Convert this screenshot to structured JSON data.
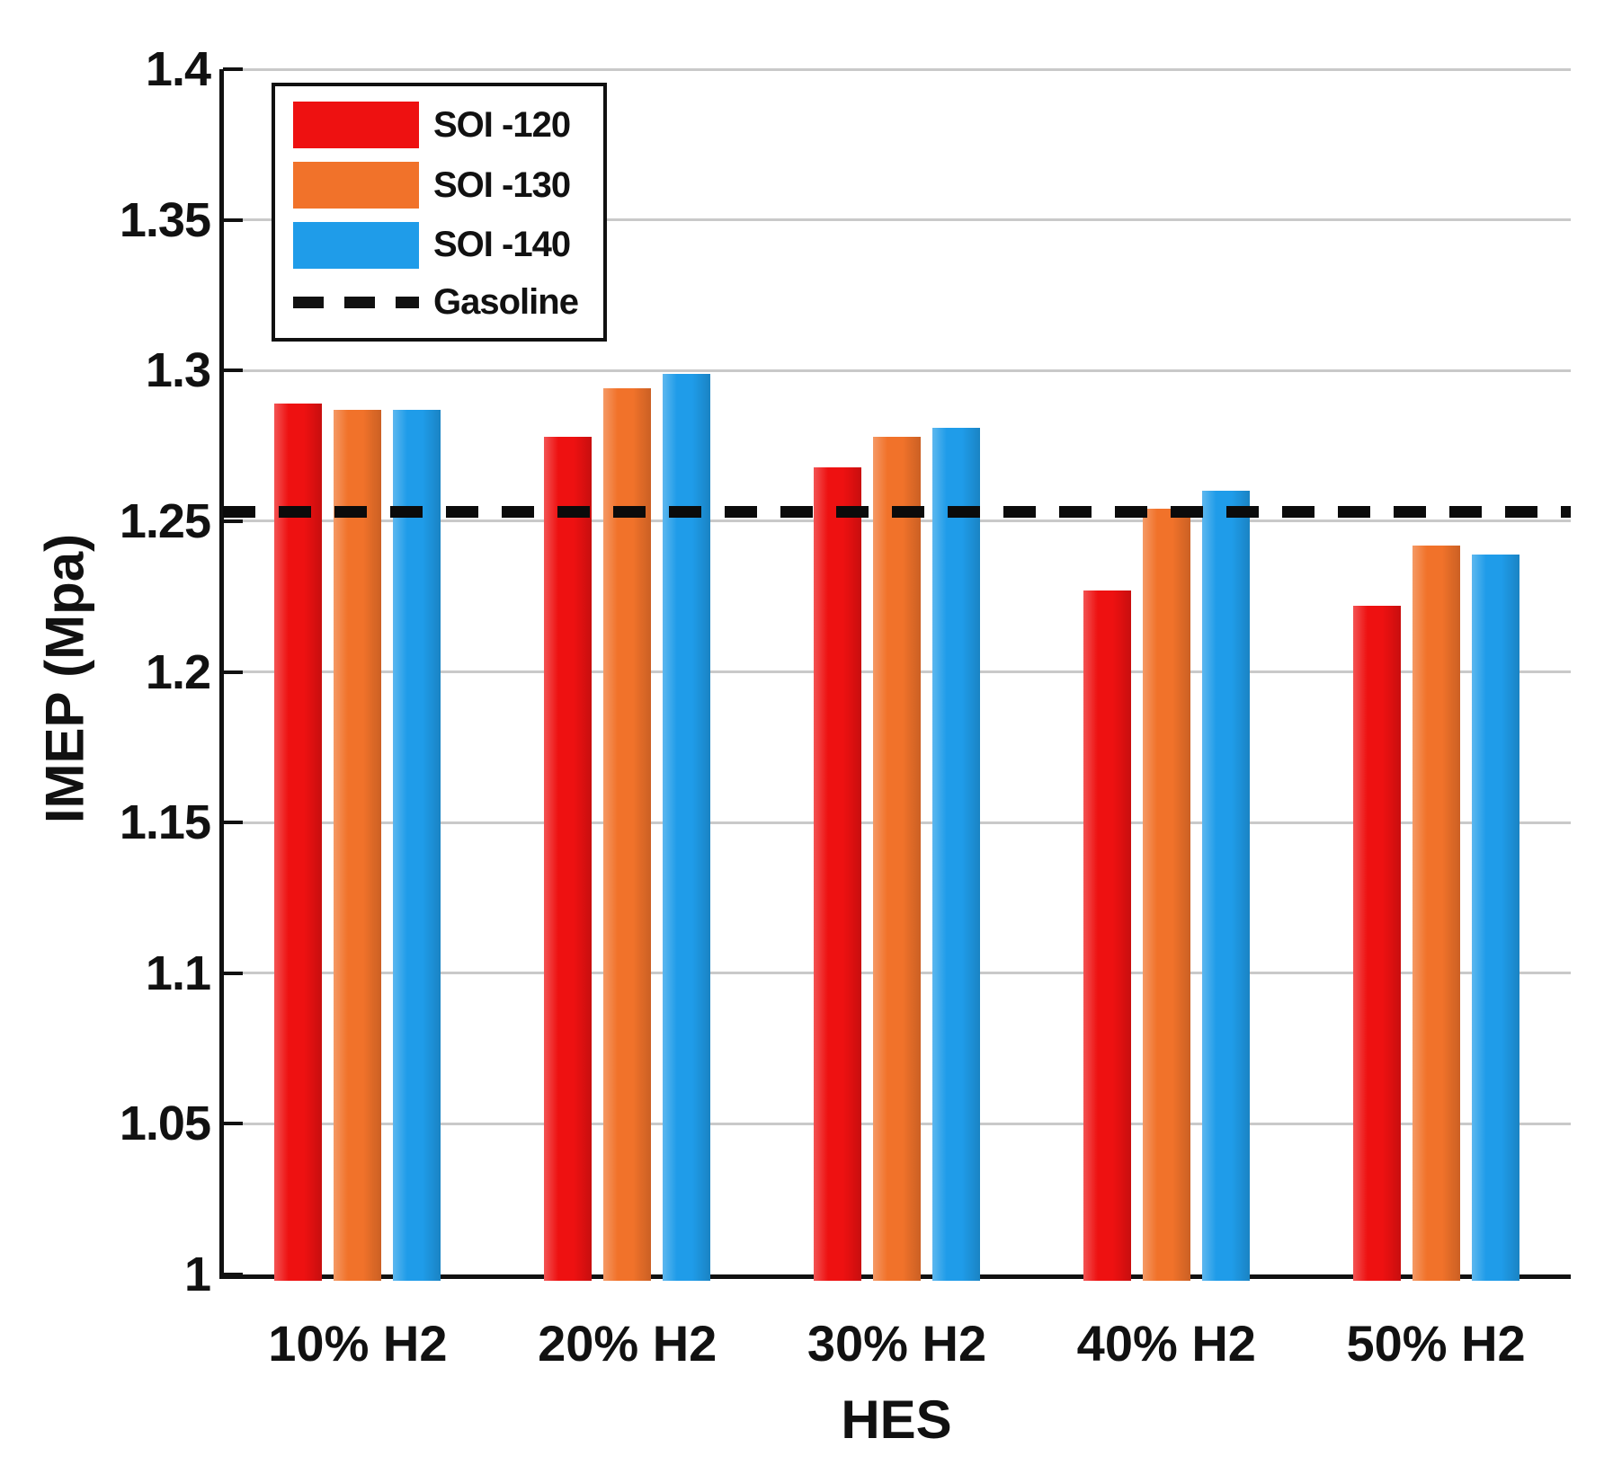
{
  "chart_data": {
    "type": "bar",
    "title": "",
    "xlabel": "HES",
    "ylabel": "IMEP (Mpa)",
    "ylim": [
      1,
      1.4
    ],
    "yticks": [
      1,
      1.05,
      1.1,
      1.15,
      1.2,
      1.25,
      1.3,
      1.35,
      1.4
    ],
    "ytick_labels": [
      "1",
      "1.05",
      "1.1",
      "1.15",
      "1.2",
      "1.25",
      "1.3",
      "1.35",
      "1.4"
    ],
    "categories": [
      "10% H2",
      "20% H2",
      "30% H2",
      "40% H2",
      "50% H2"
    ],
    "series": [
      {
        "name": "SOI -120",
        "color": "#ee1111",
        "values": [
          1.289,
          1.278,
          1.268,
          1.227,
          1.222
        ]
      },
      {
        "name": "SOI -130",
        "color": "#f1722a",
        "values": [
          1.287,
          1.294,
          1.278,
          1.254,
          1.242
        ]
      },
      {
        "name": "SOI -140",
        "color": "#1f9ce9",
        "values": [
          1.287,
          1.299,
          1.281,
          1.26,
          1.239
        ]
      }
    ],
    "reference_line": {
      "name": "Gasoline",
      "value": 1.253,
      "style": "dashed",
      "color": "#000000"
    },
    "grid": "horizontal",
    "gridline_color": "#c9c9c9",
    "axis_color": "#111111",
    "legend_position": "top-left"
  }
}
